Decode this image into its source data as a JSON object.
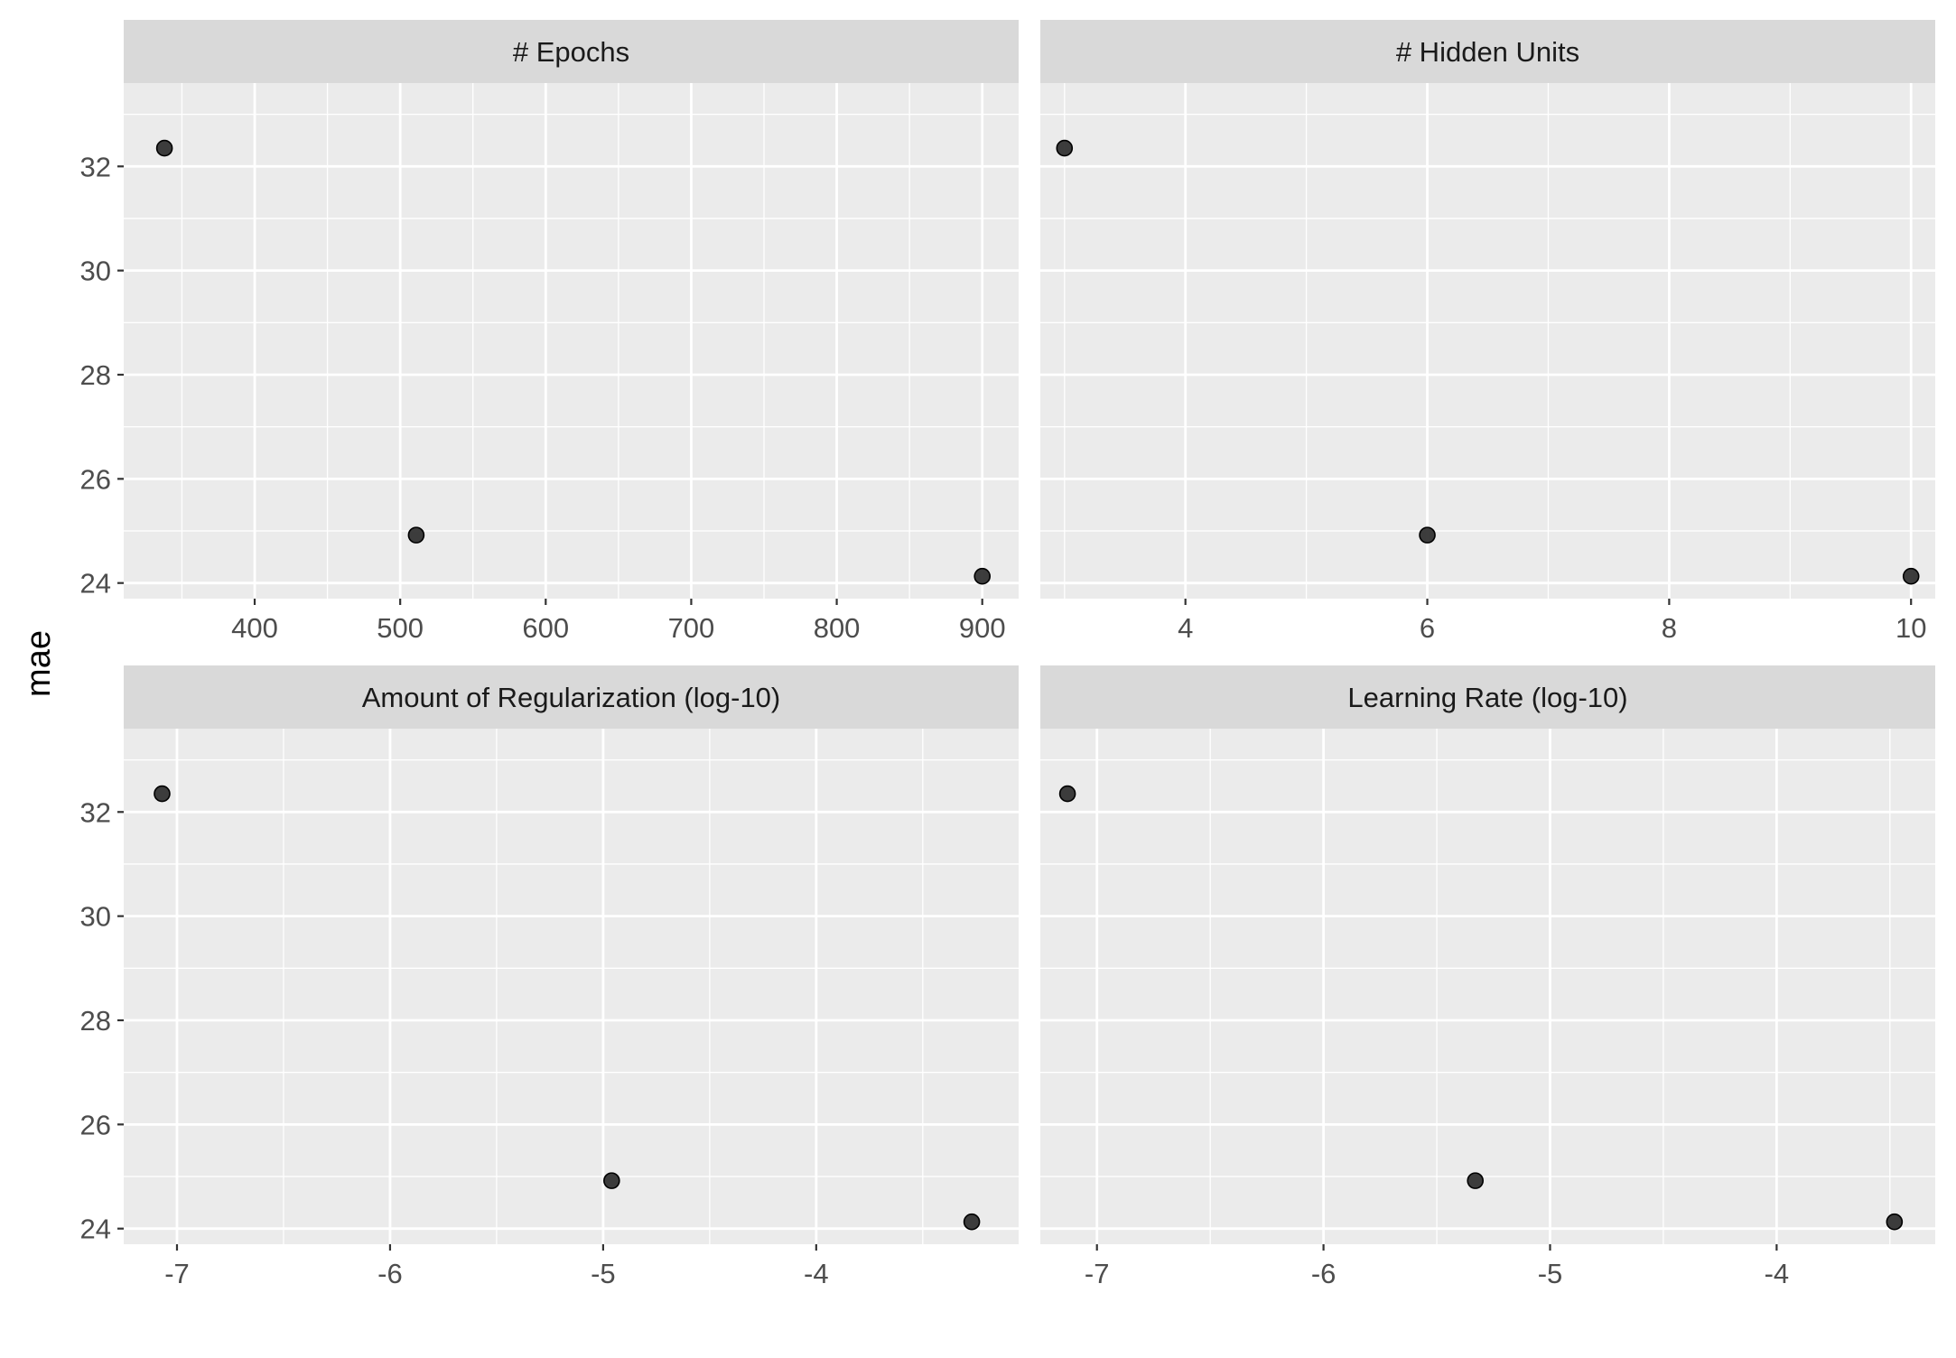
{
  "chart_data": {
    "type": "scatter",
    "ylabel": "mae",
    "ylim": [
      23.7,
      33.6
    ],
    "y_ticks": [
      24,
      26,
      28,
      30,
      32
    ],
    "panels": [
      {
        "title": "# Epochs",
        "xlim": [
          310,
          925
        ],
        "x_ticks": [
          400,
          500,
          600,
          700,
          800,
          900
        ],
        "x_tick_labels": [
          "400",
          "500",
          "600",
          "700",
          "800",
          "900"
        ],
        "points": [
          {
            "x": 338,
            "y": 32.35
          },
          {
            "x": 511,
            "y": 24.92
          },
          {
            "x": 900,
            "y": 24.13
          }
        ]
      },
      {
        "title": "# Hidden Units",
        "xlim": [
          2.8,
          10.2
        ],
        "x_ticks": [
          4,
          6,
          8,
          10
        ],
        "x_tick_labels": [
          "4",
          "6",
          "8",
          "10"
        ],
        "points": [
          {
            "x": 3,
            "y": 32.35
          },
          {
            "x": 6,
            "y": 24.92
          },
          {
            "x": 10,
            "y": 24.13
          }
        ]
      },
      {
        "title": "Amount of Regularization (log-10)",
        "xlim": [
          -7.25,
          -3.05
        ],
        "x_ticks": [
          -7,
          -6,
          -5,
          -4
        ],
        "x_tick_labels": [
          "-7",
          "-6",
          "-5",
          "-4"
        ],
        "points": [
          {
            "x": -7.07,
            "y": 32.35
          },
          {
            "x": -4.96,
            "y": 24.92
          },
          {
            "x": -3.27,
            "y": 24.13
          }
        ]
      },
      {
        "title": "Learning Rate (log-10)",
        "xlim": [
          -7.25,
          -3.3
        ],
        "x_ticks": [
          -7,
          -6,
          -5,
          -4
        ],
        "x_tick_labels": [
          "-7",
          "-6",
          "-5",
          "-4"
        ],
        "points": [
          {
            "x": -7.13,
            "y": 32.35
          },
          {
            "x": -5.33,
            "y": 24.92
          },
          {
            "x": -3.48,
            "y": 24.13
          }
        ]
      }
    ],
    "colors": {
      "panel_background": "#ebebeb",
      "strip_background": "#d9d9d9",
      "grid": "#ffffff",
      "point_fill": "#333333",
      "point_stroke": "#000000"
    }
  }
}
